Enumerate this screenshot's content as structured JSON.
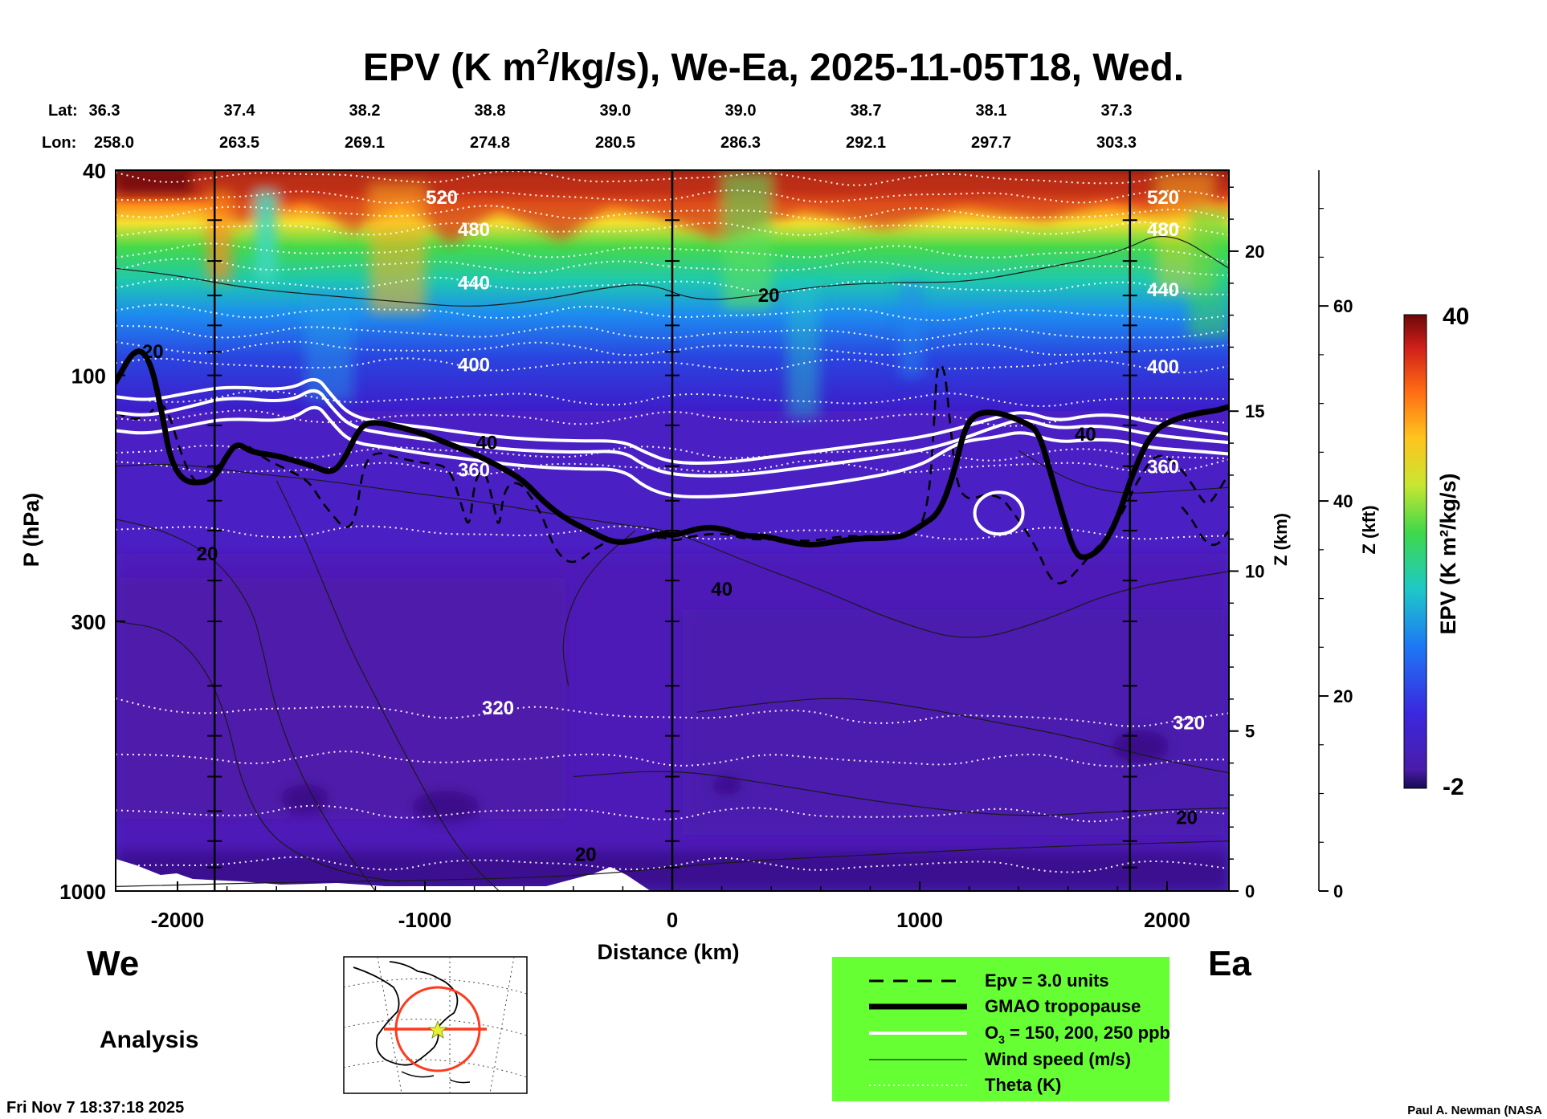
{
  "chart_data": {
    "type": "heatmap",
    "title_main": "EPV (K m",
    "title_sup": "2",
    "title_rest": "/kg/s), We-Ea, 2025-11-05T18, Wed.",
    "lat_label": "Lat:",
    "lon_label": "Lon:",
    "lat_values": [
      "36.3",
      "37.4",
      "38.2",
      "38.8",
      "39.0",
      "39.0",
      "38.7",
      "38.1",
      "37.3"
    ],
    "lon_values": [
      "258.0",
      "263.5",
      "269.1",
      "274.8",
      "280.5",
      "286.3",
      "292.1",
      "297.7",
      "303.3"
    ],
    "xlabel": "Distance (km)",
    "ylabel": "P (hPa)",
    "z_km_label": "Z (km)",
    "z_kft_label": "Z (kft)",
    "x_ticks": [
      -2000,
      -1000,
      0,
      1000,
      2000
    ],
    "x_tick_labels": [
      "-2000",
      "-1000",
      "0",
      "1000",
      "2000"
    ],
    "xlim": [
      -2250,
      2250
    ],
    "ylim_hpa": [
      1000,
      40
    ],
    "y_scale": "log",
    "y_ticks": [
      40,
      100,
      300,
      1000
    ],
    "y_tick_labels": [
      "40",
      "100",
      "300",
      "1000"
    ],
    "z_km_ticks": [
      0,
      5,
      10,
      15,
      20
    ],
    "z_km_tick_labels": [
      "0",
      "5",
      "10",
      "15",
      "20"
    ],
    "z_kft_ticks": [
      0,
      20,
      40,
      60
    ],
    "z_kft_tick_labels": [
      "0",
      "20",
      "40",
      "60"
    ],
    "colorbar": {
      "label": "EPV (K m²/kg/s)",
      "min": -2,
      "max": 40,
      "min_label": "-2",
      "max_label": "40"
    },
    "theta_contours_K": [
      {
        "label": "520",
        "p_west": 45,
        "p_east": 45
      },
      {
        "label": "480",
        "p_west": 52,
        "p_east": 52
      },
      {
        "label": "440",
        "p_west": 66,
        "p_east": 68
      },
      {
        "label": "400",
        "p_west": 95,
        "p_east": 96
      },
      {
        "label": "360",
        "p_west": 152,
        "p_east": 150
      },
      {
        "label": "320",
        "p_west": 440,
        "p_east": 470
      }
    ],
    "theta_extra_levels_hpa": [
      41,
      48,
      57,
      61,
      75,
      82,
      88,
      110,
      120,
      140,
      200,
      550,
      700,
      880
    ],
    "wind_labels": [
      {
        "label": "20",
        "x_km": -2100,
        "p": 90
      },
      {
        "label": "20",
        "x_km": -1880,
        "p": 222
      },
      {
        "label": "40",
        "x_km": -750,
        "p": 135
      },
      {
        "label": "20",
        "x_km": 390,
        "p": 70
      },
      {
        "label": "40",
        "x_km": 200,
        "p": 260
      },
      {
        "label": "40",
        "x_km": 1670,
        "p": 130
      },
      {
        "label": "20",
        "x_km": -350,
        "p": 850
      },
      {
        "label": "20",
        "x_km": 2080,
        "p": 720
      }
    ],
    "tropopause_km": [
      [
        -2250,
        103
      ],
      [
        -2170,
        88
      ],
      [
        -2110,
        93
      ],
      [
        -2060,
        120
      ],
      [
        -2030,
        145
      ],
      [
        -1980,
        160
      ],
      [
        -1910,
        162
      ],
      [
        -1850,
        158
      ],
      [
        -1800,
        143
      ],
      [
        -1760,
        135
      ],
      [
        -1700,
        141
      ],
      [
        -1600,
        143
      ],
      [
        -1450,
        150
      ],
      [
        -1380,
        155
      ],
      [
        -1330,
        147
      ],
      [
        -1260,
        125
      ],
      [
        -1200,
        123
      ],
      [
        -1100,
        126
      ],
      [
        -1000,
        130
      ],
      [
        -900,
        136
      ],
      [
        -800,
        142
      ],
      [
        -700,
        150
      ],
      [
        -600,
        160
      ],
      [
        -520,
        176
      ],
      [
        -430,
        190
      ],
      [
        -330,
        201
      ],
      [
        -230,
        212
      ],
      [
        -130,
        208
      ],
      [
        -40,
        202
      ],
      [
        0,
        205
      ],
      [
        120,
        197
      ],
      [
        200,
        198
      ],
      [
        290,
        205
      ],
      [
        380,
        205
      ],
      [
        460,
        210
      ],
      [
        560,
        214
      ],
      [
        660,
        210
      ],
      [
        760,
        207
      ],
      [
        860,
        207
      ],
      [
        940,
        205
      ],
      [
        1010,
        195
      ],
      [
        1080,
        185
      ],
      [
        1140,
        154
      ],
      [
        1180,
        127
      ],
      [
        1230,
        118
      ],
      [
        1320,
        118
      ],
      [
        1420,
        123
      ],
      [
        1480,
        128
      ],
      [
        1530,
        155
      ],
      [
        1580,
        188
      ],
      [
        1630,
        224
      ],
      [
        1680,
        226
      ],
      [
        1740,
        215
      ],
      [
        1800,
        190
      ],
      [
        1860,
        155
      ],
      [
        1940,
        128
      ],
      [
        2040,
        121
      ],
      [
        2140,
        118
      ],
      [
        2200,
        117
      ],
      [
        2250,
        115
      ]
    ],
    "o3_ppb_lines": [
      {
        "label": "150",
        "pts": [
          [
            -2250,
            110
          ],
          [
            -2120,
            112
          ],
          [
            -1950,
            108
          ],
          [
            -1800,
            105
          ],
          [
            -1550,
            107
          ],
          [
            -1440,
            100
          ],
          [
            -1380,
            109
          ],
          [
            -1300,
            120
          ],
          [
            -1150,
            124
          ],
          [
            -1000,
            126
          ],
          [
            -800,
            130
          ],
          [
            -600,
            133
          ],
          [
            -380,
            134
          ],
          [
            -200,
            134
          ],
          [
            -110,
            141
          ],
          [
            0,
            148
          ],
          [
            200,
            148
          ],
          [
            400,
            144
          ],
          [
            800,
            136
          ],
          [
            1000,
            132
          ],
          [
            1150,
            127
          ],
          [
            1300,
            121
          ],
          [
            1420,
            117
          ],
          [
            1550,
            123
          ],
          [
            1700,
            119
          ],
          [
            1830,
            120
          ],
          [
            1920,
            123
          ],
          [
            2100,
            127
          ],
          [
            2250,
            130
          ]
        ]
      },
      {
        "label": "200",
        "pts": [
          [
            -2250,
            118
          ],
          [
            -2120,
            120
          ],
          [
            -1950,
            115
          ],
          [
            -1800,
            110
          ],
          [
            -1550,
            113
          ],
          [
            -1440,
            105
          ],
          [
            -1380,
            115
          ],
          [
            -1300,
            126
          ],
          [
            -1150,
            130
          ],
          [
            -1000,
            133
          ],
          [
            -800,
            137
          ],
          [
            -600,
            140
          ],
          [
            -380,
            141
          ],
          [
            -200,
            140
          ],
          [
            -110,
            150
          ],
          [
            0,
            156
          ],
          [
            200,
            157
          ],
          [
            400,
            154
          ],
          [
            800,
            145
          ],
          [
            1000,
            140
          ],
          [
            1150,
            134
          ],
          [
            1300,
            126
          ],
          [
            1420,
            121
          ],
          [
            1550,
            127
          ],
          [
            1700,
            125
          ],
          [
            1830,
            127
          ],
          [
            1920,
            130
          ],
          [
            2100,
            133
          ],
          [
            2250,
            135
          ]
        ]
      },
      {
        "label": "250",
        "pts": [
          [
            -2250,
            128
          ],
          [
            -2120,
            130
          ],
          [
            -1950,
            125
          ],
          [
            -1800,
            121
          ],
          [
            -1550,
            123
          ],
          [
            -1440,
            113
          ],
          [
            -1380,
            123
          ],
          [
            -1300,
            135
          ],
          [
            -1150,
            138
          ],
          [
            -1000,
            142
          ],
          [
            -800,
            146
          ],
          [
            -600,
            150
          ],
          [
            -380,
            152
          ],
          [
            -200,
            152
          ],
          [
            -110,
            165
          ],
          [
            0,
            172
          ],
          [
            200,
            172
          ],
          [
            400,
            168
          ],
          [
            800,
            158
          ],
          [
            1000,
            150
          ],
          [
            1100,
            140
          ],
          [
            1180,
            134
          ],
          [
            1300,
            132
          ],
          [
            1420,
            128
          ],
          [
            1550,
            135
          ],
          [
            1700,
            133
          ],
          [
            1830,
            134
          ],
          [
            1920,
            138
          ],
          [
            2100,
            140
          ],
          [
            2250,
            142
          ]
        ]
      }
    ],
    "o3_closed_loop_center": {
      "x_km": 1320,
      "p": 185
    },
    "vertical_lines_km": [
      -1850,
      0,
      1850
    ],
    "bottom_left_label": "We",
    "bottom_right_label": "Ea",
    "analysis_label": "Analysis",
    "legend": [
      {
        "style": "dash",
        "text": "Epv = 3.0 units"
      },
      {
        "style": "thick",
        "text": "GMAO tropopause"
      },
      {
        "style": "white",
        "text_main": "O",
        "text_sub": "3",
        "text_rest": " = 150, 200, 250 ppb"
      },
      {
        "style": "thin",
        "text": "Wind speed (m/s)"
      },
      {
        "style": "dotted",
        "text": "Theta (K)"
      }
    ],
    "legend_bg": "#66ff33",
    "timestamp": "Fri Nov  7 18:37:18 2025",
    "credit": "Paul A. Newman (NASA"
  }
}
